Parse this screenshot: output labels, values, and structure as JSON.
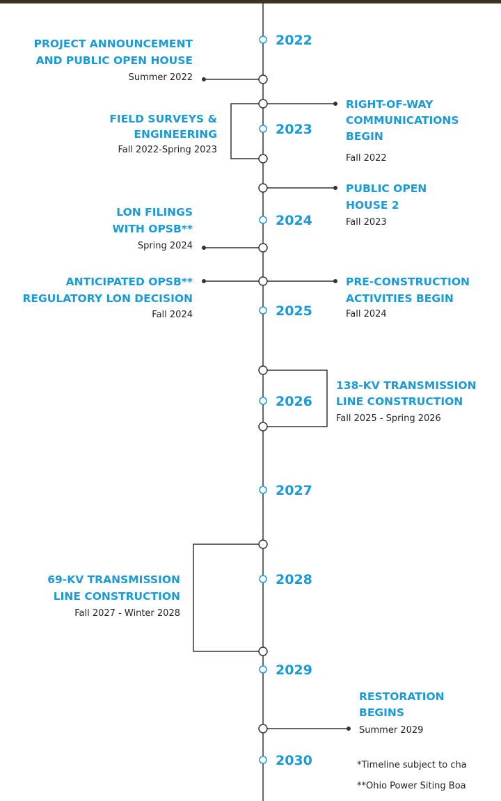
{
  "years": [
    "2022",
    "2023",
    "2024",
    "2025",
    "2026",
    "2027",
    "2028",
    "2029",
    "2030"
  ],
  "events": [
    {
      "title": [
        "PROJECT ANNOUNCEMENT",
        "AND PUBLIC OPEN HOUSE"
      ],
      "date": "Summer 2022"
    },
    {
      "title": [
        "FIELD SURVEYS &",
        "ENGINEERING"
      ],
      "date": "Fall 2022-Spring 2023"
    },
    {
      "title": [
        "RIGHT-OF-WAY",
        "COMMUNICATIONS",
        "BEGIN"
      ],
      "date": "Fall 2022"
    },
    {
      "title": [
        "PUBLIC OPEN",
        "HOUSE 2"
      ],
      "date": "Fall 2023"
    },
    {
      "title": [
        "LON FILINGS",
        "WITH OPSB**"
      ],
      "date": "Spring 2024"
    },
    {
      "title": [
        "ANTICIPATED OPSB**",
        "REGULATORY LON DECISION"
      ],
      "date": "Fall 2024"
    },
    {
      "title": [
        "PRE-CONSTRUCTION",
        "ACTIVITIES BEGIN"
      ],
      "date": "Fall 2024"
    },
    {
      "title": [
        "138-KV TRANSMISSION",
        "LINE CONSTRUCTION"
      ],
      "date": "Fall 2025 - Spring 2026"
    },
    {
      "title": [
        "69-KV TRANSMISSION",
        "LINE CONSTRUCTION"
      ],
      "date": "Fall 2027 - Winter 2028"
    },
    {
      "title": [
        "RESTORATION",
        "BEGINS"
      ],
      "date": "Summer 2029"
    }
  ],
  "footnotes": [
    "*Timeline subject to cha",
    "**Ohio Power Siting Boa"
  ]
}
